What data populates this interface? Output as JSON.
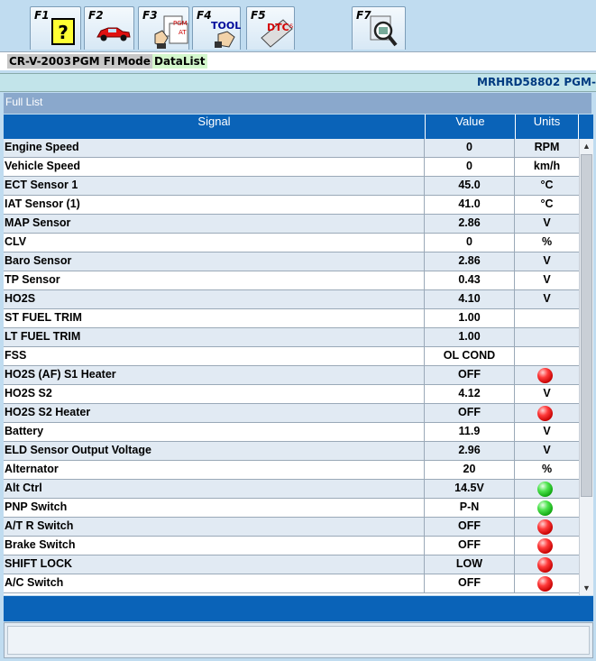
{
  "toolbar": {
    "keys": [
      {
        "label": "F1",
        "icon": "help-question-icon"
      },
      {
        "label": "F2",
        "icon": "vehicle-car-icon"
      },
      {
        "label": "F3",
        "icon": "system-select-icon"
      },
      {
        "label": "F4",
        "icon": "tool-hand-icon"
      },
      {
        "label": "F5",
        "icon": "dtc-codes-icon"
      },
      {
        "label": "F7",
        "icon": "magnifier-snapshot-icon"
      }
    ]
  },
  "breadcrumb": {
    "model": "CR-V-2003",
    "system": "PGM FI",
    "mode": "Mode",
    "view": "DataList"
  },
  "id_bar": {
    "text": "MRHRD58802  PGM-"
  },
  "list_title": "Full List",
  "table": {
    "headers": {
      "signal": "Signal",
      "value": "Value",
      "units": "Units"
    },
    "rows": [
      {
        "signal": "Engine Speed",
        "value": "0",
        "unit": "RPM"
      },
      {
        "signal": "Vehicle Speed",
        "value": "0",
        "unit": "km/h"
      },
      {
        "signal": "ECT Sensor 1",
        "value": "45.0",
        "unit": "°C"
      },
      {
        "signal": "IAT Sensor (1)",
        "value": "41.0",
        "unit": "°C"
      },
      {
        "signal": "MAP Sensor",
        "value": "2.86",
        "unit": "V"
      },
      {
        "signal": "CLV",
        "value": "0",
        "unit": "%"
      },
      {
        "signal": "Baro Sensor",
        "value": "2.86",
        "unit": "V"
      },
      {
        "signal": "TP Sensor",
        "value": "0.43",
        "unit": "V"
      },
      {
        "signal": "HO2S",
        "value": "4.10",
        "unit": "V"
      },
      {
        "signal": "ST FUEL TRIM",
        "value": "1.00",
        "unit": ""
      },
      {
        "signal": "LT FUEL TRIM",
        "value": "1.00",
        "unit": ""
      },
      {
        "signal": "FSS",
        "value": "OL COND",
        "unit": ""
      },
      {
        "signal": "HO2S (AF) S1 Heater",
        "value": "OFF",
        "unit": "",
        "indicator": "red"
      },
      {
        "signal": "HO2S S2",
        "value": "4.12",
        "unit": "V"
      },
      {
        "signal": "HO2S S2 Heater",
        "value": "OFF",
        "unit": "",
        "indicator": "red"
      },
      {
        "signal": "Battery",
        "value": "11.9",
        "unit": "V"
      },
      {
        "signal": "ELD Sensor Output Voltage",
        "value": "2.96",
        "unit": "V"
      },
      {
        "signal": "Alternator",
        "value": "20",
        "unit": "%"
      },
      {
        "signal": "Alt Ctrl",
        "value": "14.5V",
        "unit": "",
        "indicator": "green"
      },
      {
        "signal": "PNP Switch",
        "value": "P-N",
        "unit": "",
        "indicator": "green"
      },
      {
        "signal": "A/T R Switch",
        "value": "OFF",
        "unit": "",
        "indicator": "red"
      },
      {
        "signal": "Brake Switch",
        "value": "OFF",
        "unit": "",
        "indicator": "red"
      },
      {
        "signal": "SHIFT LOCK",
        "value": "LOW",
        "unit": "",
        "indicator": "red"
      },
      {
        "signal": "A/C Switch",
        "value": "OFF",
        "unit": "",
        "indicator": "red"
      }
    ]
  },
  "colors": {
    "header_blue": "#0a63b8",
    "indicator_red": "#e00000",
    "indicator_green": "#1ec21e"
  }
}
